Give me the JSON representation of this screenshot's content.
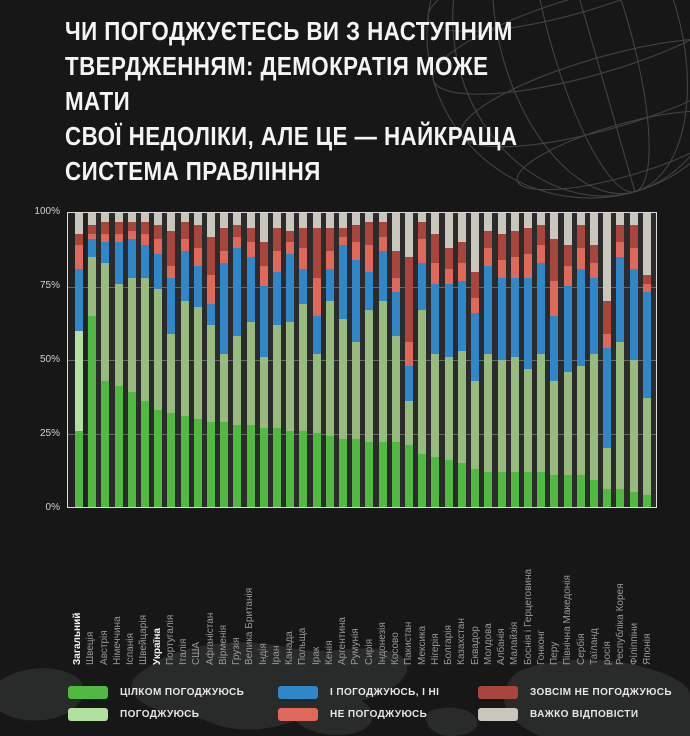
{
  "title": "ЧИ ПОГОДЖУЄТЕСЬ ВИ З НАСТУПНИМ\nТВЕРДЖЕННЯМ:  ДЕМОКРАТІЯ МОЖЕ МАТИ\nСВОЇ НЕДОЛІКИ, АЛЕ ЦЕ — НАЙКРАЩА\nСИСТЕМА ПРАВЛІННЯ",
  "colors": {
    "background": "#171717",
    "plot_panel": "#2b2b2b",
    "strongly_agree": "#4fba3f",
    "agree": "#b2e09e",
    "agree_dim": "#97bb7f",
    "both": "#2f86c8",
    "disagree": "#e0685a",
    "strongly_disagree": "#a8453d",
    "hard_to_say": "#c9c6bd",
    "grid": "rgba(255,255,255,0.28)",
    "axis_text": "#d2d2d2",
    "label_text": "#999999",
    "highlight_text": "#f5f5f5"
  },
  "chart_data": {
    "type": "bar",
    "stacked": true,
    "percent": true,
    "title": "Чи погоджуєтесь ви з наступним твердженням: демократія може мати свої недоліки, але це — найкраща система правління",
    "xlabel": "",
    "ylabel": "",
    "ylim": [
      0,
      100
    ],
    "yticks": [
      "100%",
      "75%",
      "50%",
      "25%",
      "0%"
    ],
    "grid": true,
    "legend_position": "bottom",
    "series_names": [
      "ЦІЛКОМ ПОГОДЖУЮСЬ",
      "ПОГОДЖУЮСЬ",
      "І ПОГОДЖУЮСЬ, І НІ",
      "НЕ ПОГОДЖУЮСЬ",
      "ЗОВСІМ НЕ ПОГОДЖУЮСЬ",
      "ВАЖКО ВІДПОВІСТИ"
    ],
    "series_colors": [
      "#4fba3f",
      "#b2e09e",
      "#2f86c8",
      "#e0685a",
      "#a8453d",
      "#c9c6bd"
    ],
    "highlight_categories": [
      "Загальний",
      "Україна"
    ],
    "categories": [
      "Загальний",
      "Швеція",
      "Австрія",
      "Німеччина",
      "Іспанія",
      "Швейцарія",
      "Україна",
      "Португалія",
      "Італія",
      "США",
      "Афганістан",
      "Вірменія",
      "Грузія",
      "Велика Британія",
      "Індія",
      "Іран",
      "Канада",
      "Польща",
      "Ірак",
      "Кенія",
      "Аргентина",
      "Румунія",
      "Сирія",
      "Індонезія",
      "Косово",
      "Пакистан",
      "Мексика",
      "Нігерія",
      "Болгарія",
      "Казахстан",
      "Еквадор",
      "Молдова",
      "Албанія",
      "Малайзія",
      "Боснія і Герцеговина",
      "Гонконг",
      "Перу",
      "Північна Македонія",
      "Сербія",
      "Таїланд",
      "росія",
      "Республіка Корея",
      "Філіппіни",
      "Японія"
    ],
    "values": [
      [
        26,
        34,
        21,
        8,
        4,
        7
      ],
      [
        65,
        20,
        6,
        2,
        3,
        4
      ],
      [
        43,
        40,
        7,
        3,
        4,
        3
      ],
      [
        41,
        35,
        14,
        3,
        4,
        3
      ],
      [
        39,
        39,
        13,
        3,
        3,
        3
      ],
      [
        36,
        42,
        11,
        4,
        4,
        3
      ],
      [
        33,
        41,
        12,
        5,
        5,
        4
      ],
      [
        32,
        27,
        19,
        4,
        12,
        6
      ],
      [
        31,
        39,
        17,
        4,
        6,
        3
      ],
      [
        30,
        38,
        14,
        6,
        8,
        4
      ],
      [
        29,
        33,
        7,
        10,
        13,
        8
      ],
      [
        29,
        23,
        31,
        4,
        8,
        5
      ],
      [
        28,
        30,
        30,
        4,
        4,
        4
      ],
      [
        28,
        35,
        22,
        5,
        5,
        5
      ],
      [
        27,
        24,
        24,
        7,
        8,
        10
      ],
      [
        27,
        35,
        18,
        7,
        8,
        5
      ],
      [
        26,
        37,
        23,
        4,
        4,
        6
      ],
      [
        26,
        43,
        12,
        7,
        7,
        5
      ],
      [
        25,
        27,
        13,
        13,
        17,
        5
      ],
      [
        24,
        46,
        11,
        6,
        8,
        5
      ],
      [
        23,
        41,
        25,
        3,
        3,
        5
      ],
      [
        23,
        33,
        28,
        6,
        6,
        4
      ],
      [
        22,
        45,
        13,
        9,
        8,
        3
      ],
      [
        22,
        48,
        17,
        5,
        5,
        3
      ],
      [
        22,
        36,
        15,
        5,
        9,
        13
      ],
      [
        21,
        15,
        12,
        8,
        29,
        15
      ],
      [
        18,
        49,
        16,
        8,
        6,
        3
      ],
      [
        17,
        35,
        24,
        7,
        10,
        7
      ],
      [
        16,
        35,
        25,
        5,
        7,
        12
      ],
      [
        15,
        38,
        24,
        6,
        7,
        10
      ],
      [
        13,
        30,
        23,
        5,
        9,
        20
      ],
      [
        12,
        40,
        30,
        6,
        6,
        6
      ],
      [
        12,
        38,
        28,
        6,
        9,
        7
      ],
      [
        12,
        39,
        27,
        7,
        9,
        6
      ],
      [
        12,
        35,
        31,
        8,
        9,
        5
      ],
      [
        12,
        40,
        31,
        6,
        7,
        4
      ],
      [
        11,
        32,
        22,
        12,
        14,
        9
      ],
      [
        11,
        35,
        29,
        7,
        7,
        11
      ],
      [
        11,
        37,
        33,
        7,
        8,
        4
      ],
      [
        9,
        43,
        26,
        5,
        6,
        11
      ],
      [
        6,
        14,
        34,
        5,
        11,
        30
      ],
      [
        6,
        50,
        29,
        5,
        6,
        4
      ],
      [
        5,
        45,
        31,
        7,
        8,
        4
      ],
      [
        4,
        33,
        36,
        3,
        3,
        21
      ]
    ]
  },
  "legend": {
    "rows": [
      [
        {
          "label": "ЦІЛКОМ ПОГОДЖУЮСЬ",
          "color": "#4fba3f",
          "key": "strongly-agree"
        },
        {
          "label": "І ПОГОДЖУЮСЬ, І НІ",
          "color": "#2f86c8",
          "key": "both"
        },
        {
          "label": "ЗОВСІМ НЕ ПОГОДЖУЮСЬ",
          "color": "#a8453d",
          "key": "strongly-disagree"
        }
      ],
      [
        {
          "label": "ПОГОДЖУЮСЬ",
          "color": "#b2e09e",
          "key": "agree"
        },
        {
          "label": "НЕ ПОГОДЖУЮСЬ",
          "color": "#e0685a",
          "key": "disagree"
        },
        {
          "label": "ВАЖКО ВІДПОВІСТИ",
          "color": "#c9c6bd",
          "key": "hard-to-say"
        }
      ]
    ]
  }
}
